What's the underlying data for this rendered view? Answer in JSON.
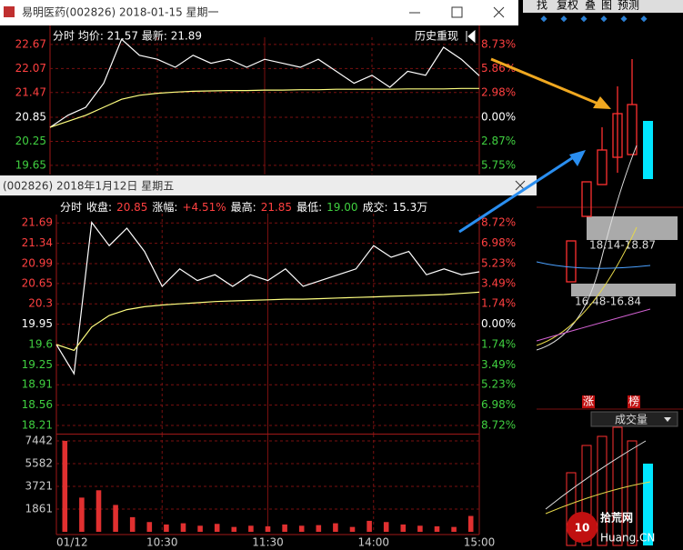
{
  "top_window": {
    "title": "易明医药(002826) 2018-01-15 星期一",
    "header": "分时 均价: 21.57 最新: 21.89",
    "replay": "历史重现",
    "chart": {
      "type": "line",
      "ylim": [
        19.42,
        22.85
      ],
      "yticks": [
        22.67,
        22.07,
        21.47,
        20.85,
        20.25,
        19.65
      ],
      "tick_colors": [
        "#ff4040",
        "#ff4040",
        "#ff4040",
        "#ffffff",
        "#40d040",
        "#40d040"
      ],
      "pct_labels": [
        "8.73%",
        "5.86%",
        "2.98%",
        "0.00%",
        "2.87%",
        "5.75%"
      ],
      "series": [
        {
          "color": "#ffffff",
          "values": [
            20.6,
            20.9,
            21.1,
            21.7,
            22.8,
            22.4,
            22.3,
            22.1,
            22.4,
            22.2,
            22.3,
            22.1,
            22.3,
            22.2,
            22.1,
            22.3,
            22.0,
            21.7,
            21.9,
            21.6,
            22.0,
            21.9,
            22.6,
            22.3,
            21.89
          ]
        },
        {
          "color": "#ffff80",
          "values": [
            20.6,
            20.75,
            20.9,
            21.1,
            21.3,
            21.4,
            21.45,
            21.48,
            21.5,
            21.51,
            21.52,
            21.52,
            21.53,
            21.53,
            21.54,
            21.54,
            21.55,
            21.55,
            21.55,
            21.55,
            21.56,
            21.56,
            21.56,
            21.57,
            21.57
          ]
        }
      ]
    }
  },
  "bottom_window": {
    "title": "(002826) 2018年1月12日 星期五",
    "header": [
      {
        "text": "分时",
        "color": "#ffffff"
      },
      {
        "text": "收盘:",
        "color": "#ffffff"
      },
      {
        "text": "20.85",
        "color": "#ff4040"
      },
      {
        "text": "涨幅:",
        "color": "#ffffff"
      },
      {
        "text": "+4.51%",
        "color": "#ff4040"
      },
      {
        "text": "最高:",
        "color": "#ffffff"
      },
      {
        "text": "21.85",
        "color": "#ff4040"
      },
      {
        "text": "最低:",
        "color": "#ffffff"
      },
      {
        "text": "19.00",
        "color": "#40d040"
      },
      {
        "text": "成交:",
        "color": "#ffffff"
      },
      {
        "text": "15.3万",
        "color": "#ffffff"
      }
    ],
    "chart": {
      "type": "line",
      "ylim": [
        18.07,
        21.85
      ],
      "yticks": [
        21.69,
        21.34,
        20.99,
        20.65,
        20.3,
        19.95,
        19.6,
        19.25,
        18.91,
        18.56,
        18.21
      ],
      "tick_colors": [
        "#ff4040",
        "#ff4040",
        "#ff4040",
        "#ff4040",
        "#ff4040",
        "#ffffff",
        "#40d040",
        "#40d040",
        "#40d040",
        "#40d040",
        "#40d040"
      ],
      "pct_labels": [
        "8.72%",
        "6.98%",
        "5.23%",
        "3.49%",
        "1.74%",
        "0.00%",
        "1.74%",
        "3.49%",
        "5.23%",
        "6.98%",
        "8.72%"
      ],
      "series": [
        {
          "color": "#ffffff",
          "values": [
            19.6,
            19.1,
            21.7,
            21.3,
            21.6,
            21.2,
            20.6,
            20.9,
            20.7,
            20.8,
            20.6,
            20.8,
            20.7,
            20.9,
            20.6,
            20.7,
            20.8,
            20.9,
            21.3,
            21.1,
            21.2,
            20.8,
            20.9,
            20.8,
            20.85
          ]
        },
        {
          "color": "#ffff80",
          "values": [
            19.6,
            19.5,
            19.9,
            20.1,
            20.2,
            20.25,
            20.28,
            20.3,
            20.32,
            20.34,
            20.35,
            20.36,
            20.37,
            20.38,
            20.38,
            20.39,
            20.4,
            20.41,
            20.42,
            20.43,
            20.44,
            20.45,
            20.46,
            20.48,
            20.5
          ]
        }
      ]
    },
    "volume": {
      "type": "bar",
      "ylim": [
        0,
        7960
      ],
      "yticks": [
        7442,
        5582,
        3721,
        1861
      ],
      "color": "#e03030",
      "values": [
        7442,
        2800,
        3400,
        2200,
        1200,
        800,
        600,
        700,
        500,
        650,
        400,
        500,
        450,
        600,
        500,
        550,
        700,
        400,
        900,
        800,
        600,
        500,
        450,
        400,
        1300
      ]
    },
    "xlabels": [
      "01/12",
      "10:30",
      "11:30",
      "14:00",
      "15:00"
    ]
  },
  "side_panel": {
    "tabs": [
      "找",
      "复权",
      "叠",
      "图",
      "预测"
    ],
    "zones": [
      "18.14-18.87",
      "16.48-16.84"
    ],
    "badges": [
      "涨",
      "榜"
    ],
    "volume_menu": "成交量",
    "watermark": [
      "10",
      "拾荒网",
      "Huang.CN"
    ]
  }
}
